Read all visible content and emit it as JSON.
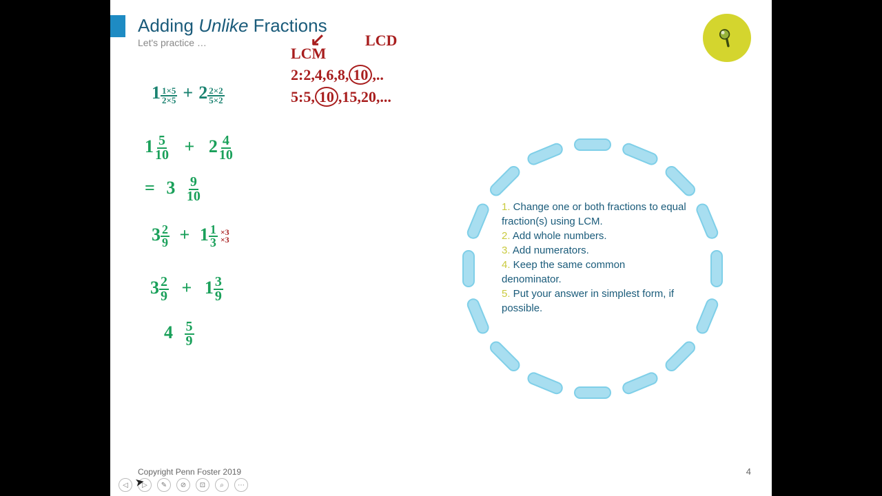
{
  "accent_color": "#1e8bc3",
  "title_parts": {
    "a": "Adding ",
    "b": "Unlike",
    "c": " Fractions"
  },
  "subtitle": "Let's practice …",
  "copyright": "Copyright Penn Foster 2019",
  "page_number": "4",
  "badge_bg": "#d4d52e",
  "ring": {
    "pill_count": 16,
    "radius": 180,
    "pill_fill": "#a8def0",
    "pill_border": "#7fcfe8"
  },
  "steps": [
    {
      "n": "1.",
      "t": " Change one or both fractions to equal fraction(s) using LCM."
    },
    {
      "n": "2.",
      "t": " Add whole numbers."
    },
    {
      "n": "3.",
      "t": " Add numerators."
    },
    {
      "n": "4.",
      "t": " Keep the same common denominator."
    },
    {
      "n": "5.",
      "t": " Put your answer in simplest form, if possible."
    }
  ],
  "red_notes": {
    "lcm": "LCM",
    "lcd": "LCD",
    "line2a": "2:",
    "line2b": "2,4,6,8,",
    "line2c": "10",
    "line2d": ",..",
    "line5a": "5:",
    "line5b": "5,",
    "line5c": "10",
    "line5d": ",15,20,..."
  },
  "work": {
    "p1": {
      "w1": "1",
      "n1": "1×5",
      "d1": "2×5",
      "plus": "+",
      "w2": "2",
      "n2": "2×2",
      "d2": "5×2"
    },
    "p2": {
      "w1": "1",
      "n1": "5",
      "d1": "10",
      "plus": "+",
      "w2": "2",
      "n2": "4",
      "d2": "10"
    },
    "p3": {
      "eq": "=",
      "w": "3",
      "n": "9",
      "d": "10"
    },
    "p4": {
      "w1": "3",
      "n1": "2",
      "d1": "9",
      "plus": "+",
      "w2": "1",
      "n2": "1",
      "d2": "3",
      "mul": "×3",
      "muld": "×3"
    },
    "p5": {
      "w1": "3",
      "n1": "2",
      "d1": "9",
      "plus": "+",
      "w2": "1",
      "n2": "3",
      "d2": "9"
    },
    "p6": {
      "w": "4",
      "n": "5",
      "d": "9"
    }
  },
  "toolbar_glyphs": [
    "◁",
    "▷",
    "✎",
    "⊘",
    "⊡",
    "⌕",
    "⋯"
  ]
}
